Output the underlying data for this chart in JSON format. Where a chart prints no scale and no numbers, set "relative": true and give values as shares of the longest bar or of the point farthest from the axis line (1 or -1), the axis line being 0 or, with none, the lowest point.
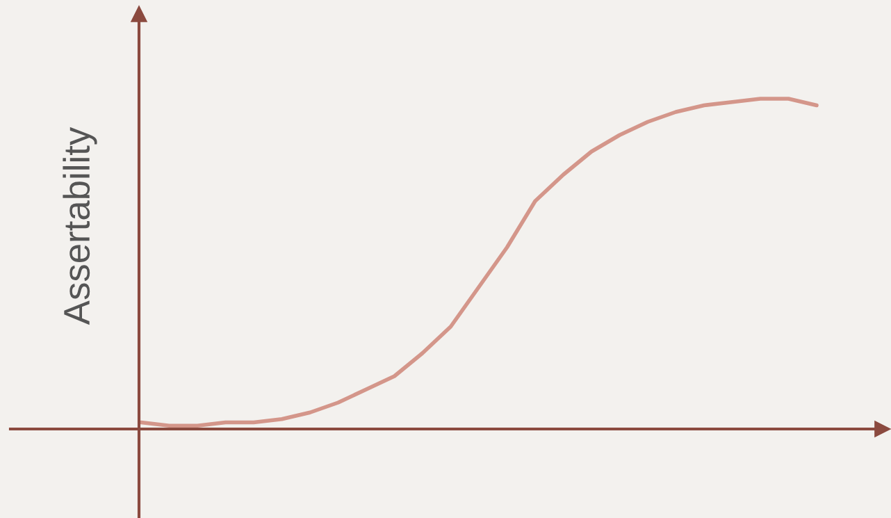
{
  "chart_data": {
    "type": "line",
    "relative": true,
    "ylabel": "Assertability",
    "categories": [
      null,
      null,
      null,
      null,
      null,
      null,
      null,
      null,
      null,
      null,
      null,
      null,
      null,
      null,
      null,
      null,
      null,
      null,
      null,
      null,
      null,
      null,
      null,
      null,
      null
    ],
    "series": [
      {
        "color": "#d4968a",
        "values": [
          0.02,
          0.01,
          0.01,
          0.02,
          0.02,
          0.03,
          0.05,
          0.08,
          0.12,
          0.16,
          0.23,
          0.31,
          0.43,
          0.55,
          0.69,
          0.77,
          0.84,
          0.89,
          0.93,
          0.96,
          0.98,
          0.99,
          1.0,
          1.0,
          0.98
        ]
      }
    ],
    "marker": "none",
    "line_style": "solid"
  }
}
